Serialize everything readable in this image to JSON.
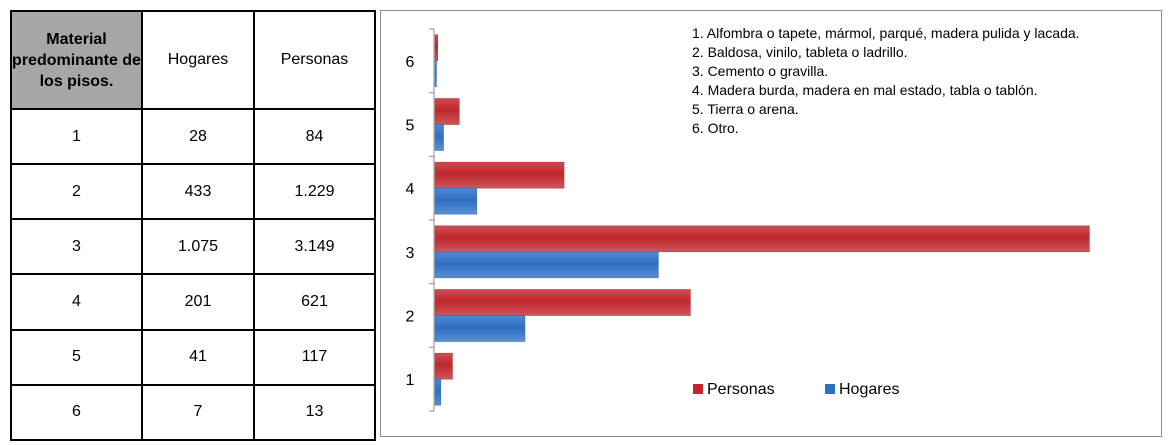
{
  "table": {
    "headers": [
      "Material predominante de los pisos.",
      "Hogares",
      "Personas"
    ],
    "rows": [
      {
        "material": "1",
        "hogares": "28",
        "personas": "84"
      },
      {
        "material": "2",
        "hogares": "433",
        "personas": "1.229"
      },
      {
        "material": "3",
        "hogares": "1.075",
        "personas": "3.149"
      },
      {
        "material": "4",
        "hogares": "201",
        "personas": "621"
      },
      {
        "material": "5",
        "hogares": "41",
        "personas": "117"
      },
      {
        "material": "6",
        "hogares": "7",
        "personas": "13"
      }
    ]
  },
  "chart_data": {
    "type": "bar",
    "orientation": "horizontal",
    "categories": [
      "1",
      "2",
      "3",
      "4",
      "5",
      "6"
    ],
    "series": [
      {
        "name": "Personas",
        "values": [
          84,
          1229,
          3149,
          621,
          117,
          13
        ],
        "color": "#c0272d"
      },
      {
        "name": "Hogares",
        "values": [
          28,
          433,
          1075,
          201,
          41,
          7
        ],
        "color": "#2e6fc3"
      }
    ],
    "xlim": [
      0,
      3200
    ],
    "grid": false,
    "legend_position": "bottom-right",
    "notes": [
      "1. Alfombra o tapete, mármol, parqué, madera pulida y lacada.",
      "2. Baldosa, vinilo, tableta o ladrillo.",
      "3. Cemento o gravilla.",
      "4. Madera burda, madera en mal estado, tabla o tablón.",
      "5. Tierra o arena.",
      "6. Otro."
    ]
  }
}
